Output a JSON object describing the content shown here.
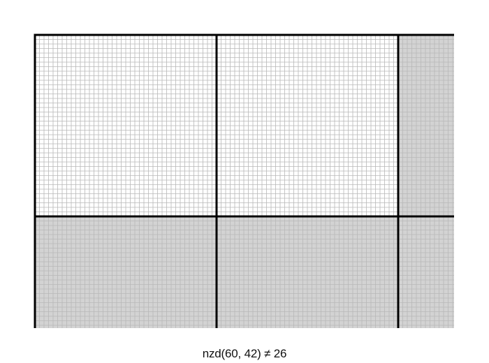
{
  "caption": "nzd(60, 42) ≠ 26",
  "colors": {
    "background": "#ffffff",
    "shaded_fill": "#d3d3d3",
    "fine_grid": "#b8b8b8",
    "block_lines": "#000000"
  }
}
